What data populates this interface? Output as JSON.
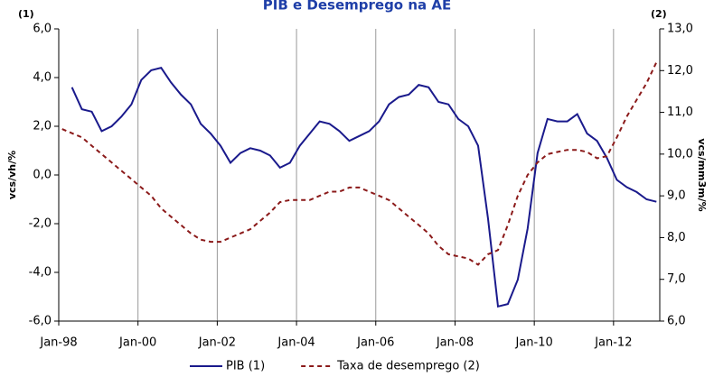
{
  "chart_data": {
    "type": "line",
    "title": "PIB e Desemprego na AE",
    "y_label": "vcs/vh/%",
    "y2_label": "vcs/mm3m/%",
    "y_note": "(1)",
    "y2_note": "(2)",
    "xlim": [
      "1998-01",
      "2013-03"
    ],
    "xticks": [
      {
        "value": "1998-01",
        "label": "Jan-98"
      },
      {
        "value": "2000-01",
        "label": "Jan-00"
      },
      {
        "value": "2002-01",
        "label": "Jan-02"
      },
      {
        "value": "2004-01",
        "label": "Jan-04"
      },
      {
        "value": "2006-01",
        "label": "Jan-06"
      },
      {
        "value": "2008-01",
        "label": "Jan-08"
      },
      {
        "value": "2010-01",
        "label": "Jan-10"
      },
      {
        "value": "2012-01",
        "label": "Jan-12"
      }
    ],
    "ylim": [
      -6,
      6
    ],
    "yticks": [
      {
        "value": -6,
        "label": "-6,0"
      },
      {
        "value": -4,
        "label": "-4,0"
      },
      {
        "value": -2,
        "label": "-2,0"
      },
      {
        "value": 0,
        "label": "0,0"
      },
      {
        "value": 2,
        "label": "2,0"
      },
      {
        "value": 4,
        "label": "4,0"
      },
      {
        "value": 6,
        "label": "6,0"
      }
    ],
    "y2lim": [
      6,
      13
    ],
    "y2ticks": [
      {
        "value": 6,
        "label": "6,0"
      },
      {
        "value": 7,
        "label": "7,0"
      },
      {
        "value": 8,
        "label": "8,0"
      },
      {
        "value": 9,
        "label": "9,0"
      },
      {
        "value": 10,
        "label": "10,0"
      },
      {
        "value": 11,
        "label": "11,0"
      },
      {
        "value": 12,
        "label": "12,0"
      },
      {
        "value": 13,
        "label": "13,0"
      }
    ],
    "grid": true,
    "legend": "bottom",
    "series": [
      {
        "name": "PIB (1)",
        "color": "#1a1a8c",
        "dash": false,
        "x": [
          "1998-05",
          "1998-08",
          "1998-11",
          "1999-02",
          "1999-05",
          "1999-08",
          "1999-11",
          "2000-02",
          "2000-05",
          "2000-08",
          "2000-11",
          "2001-02",
          "2001-05",
          "2001-08",
          "2001-11",
          "2002-02",
          "2002-05",
          "2002-08",
          "2002-11",
          "2003-02",
          "2003-05",
          "2003-08",
          "2003-11",
          "2004-02",
          "2004-05",
          "2004-08",
          "2004-11",
          "2005-02",
          "2005-05",
          "2005-08",
          "2005-11",
          "2006-02",
          "2006-05",
          "2006-08",
          "2006-11",
          "2007-02",
          "2007-05",
          "2007-08",
          "2007-11",
          "2008-02",
          "2008-05",
          "2008-08",
          "2008-11",
          "2009-02",
          "2009-05",
          "2009-08",
          "2009-11",
          "2010-02",
          "2010-05",
          "2010-08",
          "2010-11",
          "2011-02",
          "2011-05",
          "2011-08",
          "2011-11",
          "2012-02",
          "2012-05",
          "2012-08",
          "2012-11",
          "2013-02"
        ],
        "values": [
          3.6,
          2.7,
          2.6,
          1.8,
          2.0,
          2.4,
          2.9,
          3.9,
          4.3,
          4.4,
          3.8,
          3.3,
          2.9,
          2.1,
          1.7,
          1.2,
          0.5,
          0.9,
          1.1,
          1.0,
          0.8,
          0.3,
          0.5,
          1.2,
          1.7,
          2.2,
          2.1,
          1.8,
          1.4,
          1.6,
          1.8,
          2.2,
          2.9,
          3.2,
          3.3,
          3.7,
          3.6,
          3.0,
          2.9,
          2.3,
          2.0,
          1.2,
          -1.8,
          -5.4,
          -5.3,
          -4.3,
          -2.2,
          0.9,
          2.3,
          2.2,
          2.2,
          2.5,
          1.7,
          1.4,
          0.7,
          -0.2,
          -0.5,
          -0.7,
          -1.0,
          -1.1
        ]
      },
      {
        "name": "Taxa de desemprego (2)",
        "color": "#8b1a1a",
        "dash": true,
        "axis": "y2",
        "x": [
          "1998-02",
          "1998-05",
          "1998-08",
          "1998-11",
          "1999-02",
          "1999-05",
          "1999-08",
          "1999-11",
          "2000-02",
          "2000-05",
          "2000-08",
          "2000-11",
          "2001-02",
          "2001-05",
          "2001-08",
          "2001-11",
          "2002-02",
          "2002-05",
          "2002-08",
          "2002-11",
          "2003-02",
          "2003-05",
          "2003-08",
          "2003-11",
          "2004-02",
          "2004-05",
          "2004-08",
          "2004-11",
          "2005-02",
          "2005-05",
          "2005-08",
          "2005-11",
          "2006-02",
          "2006-05",
          "2006-08",
          "2006-11",
          "2007-02",
          "2007-05",
          "2007-08",
          "2007-11",
          "2008-02",
          "2008-05",
          "2008-08",
          "2008-11",
          "2009-02",
          "2009-05",
          "2009-08",
          "2009-11",
          "2010-02",
          "2010-05",
          "2010-08",
          "2010-11",
          "2011-02",
          "2011-05",
          "2011-08",
          "2011-11",
          "2012-02",
          "2012-05",
          "2012-08",
          "2012-11",
          "2013-02"
        ],
        "values": [
          10.6,
          10.5,
          10.4,
          10.2,
          10.0,
          9.8,
          9.6,
          9.4,
          9.2,
          9.0,
          8.7,
          8.5,
          8.3,
          8.1,
          7.95,
          7.9,
          7.9,
          8.0,
          8.1,
          8.2,
          8.4,
          8.6,
          8.85,
          8.9,
          8.9,
          8.9,
          9.0,
          9.1,
          9.1,
          9.2,
          9.2,
          9.1,
          9.0,
          8.9,
          8.7,
          8.5,
          8.3,
          8.1,
          7.8,
          7.6,
          7.55,
          7.5,
          7.35,
          7.6,
          7.7,
          8.3,
          9.0,
          9.5,
          9.8,
          10.0,
          10.05,
          10.1,
          10.1,
          10.05,
          9.9,
          9.95,
          10.4,
          10.9,
          11.3,
          11.7,
          12.2
        ]
      }
    ]
  }
}
